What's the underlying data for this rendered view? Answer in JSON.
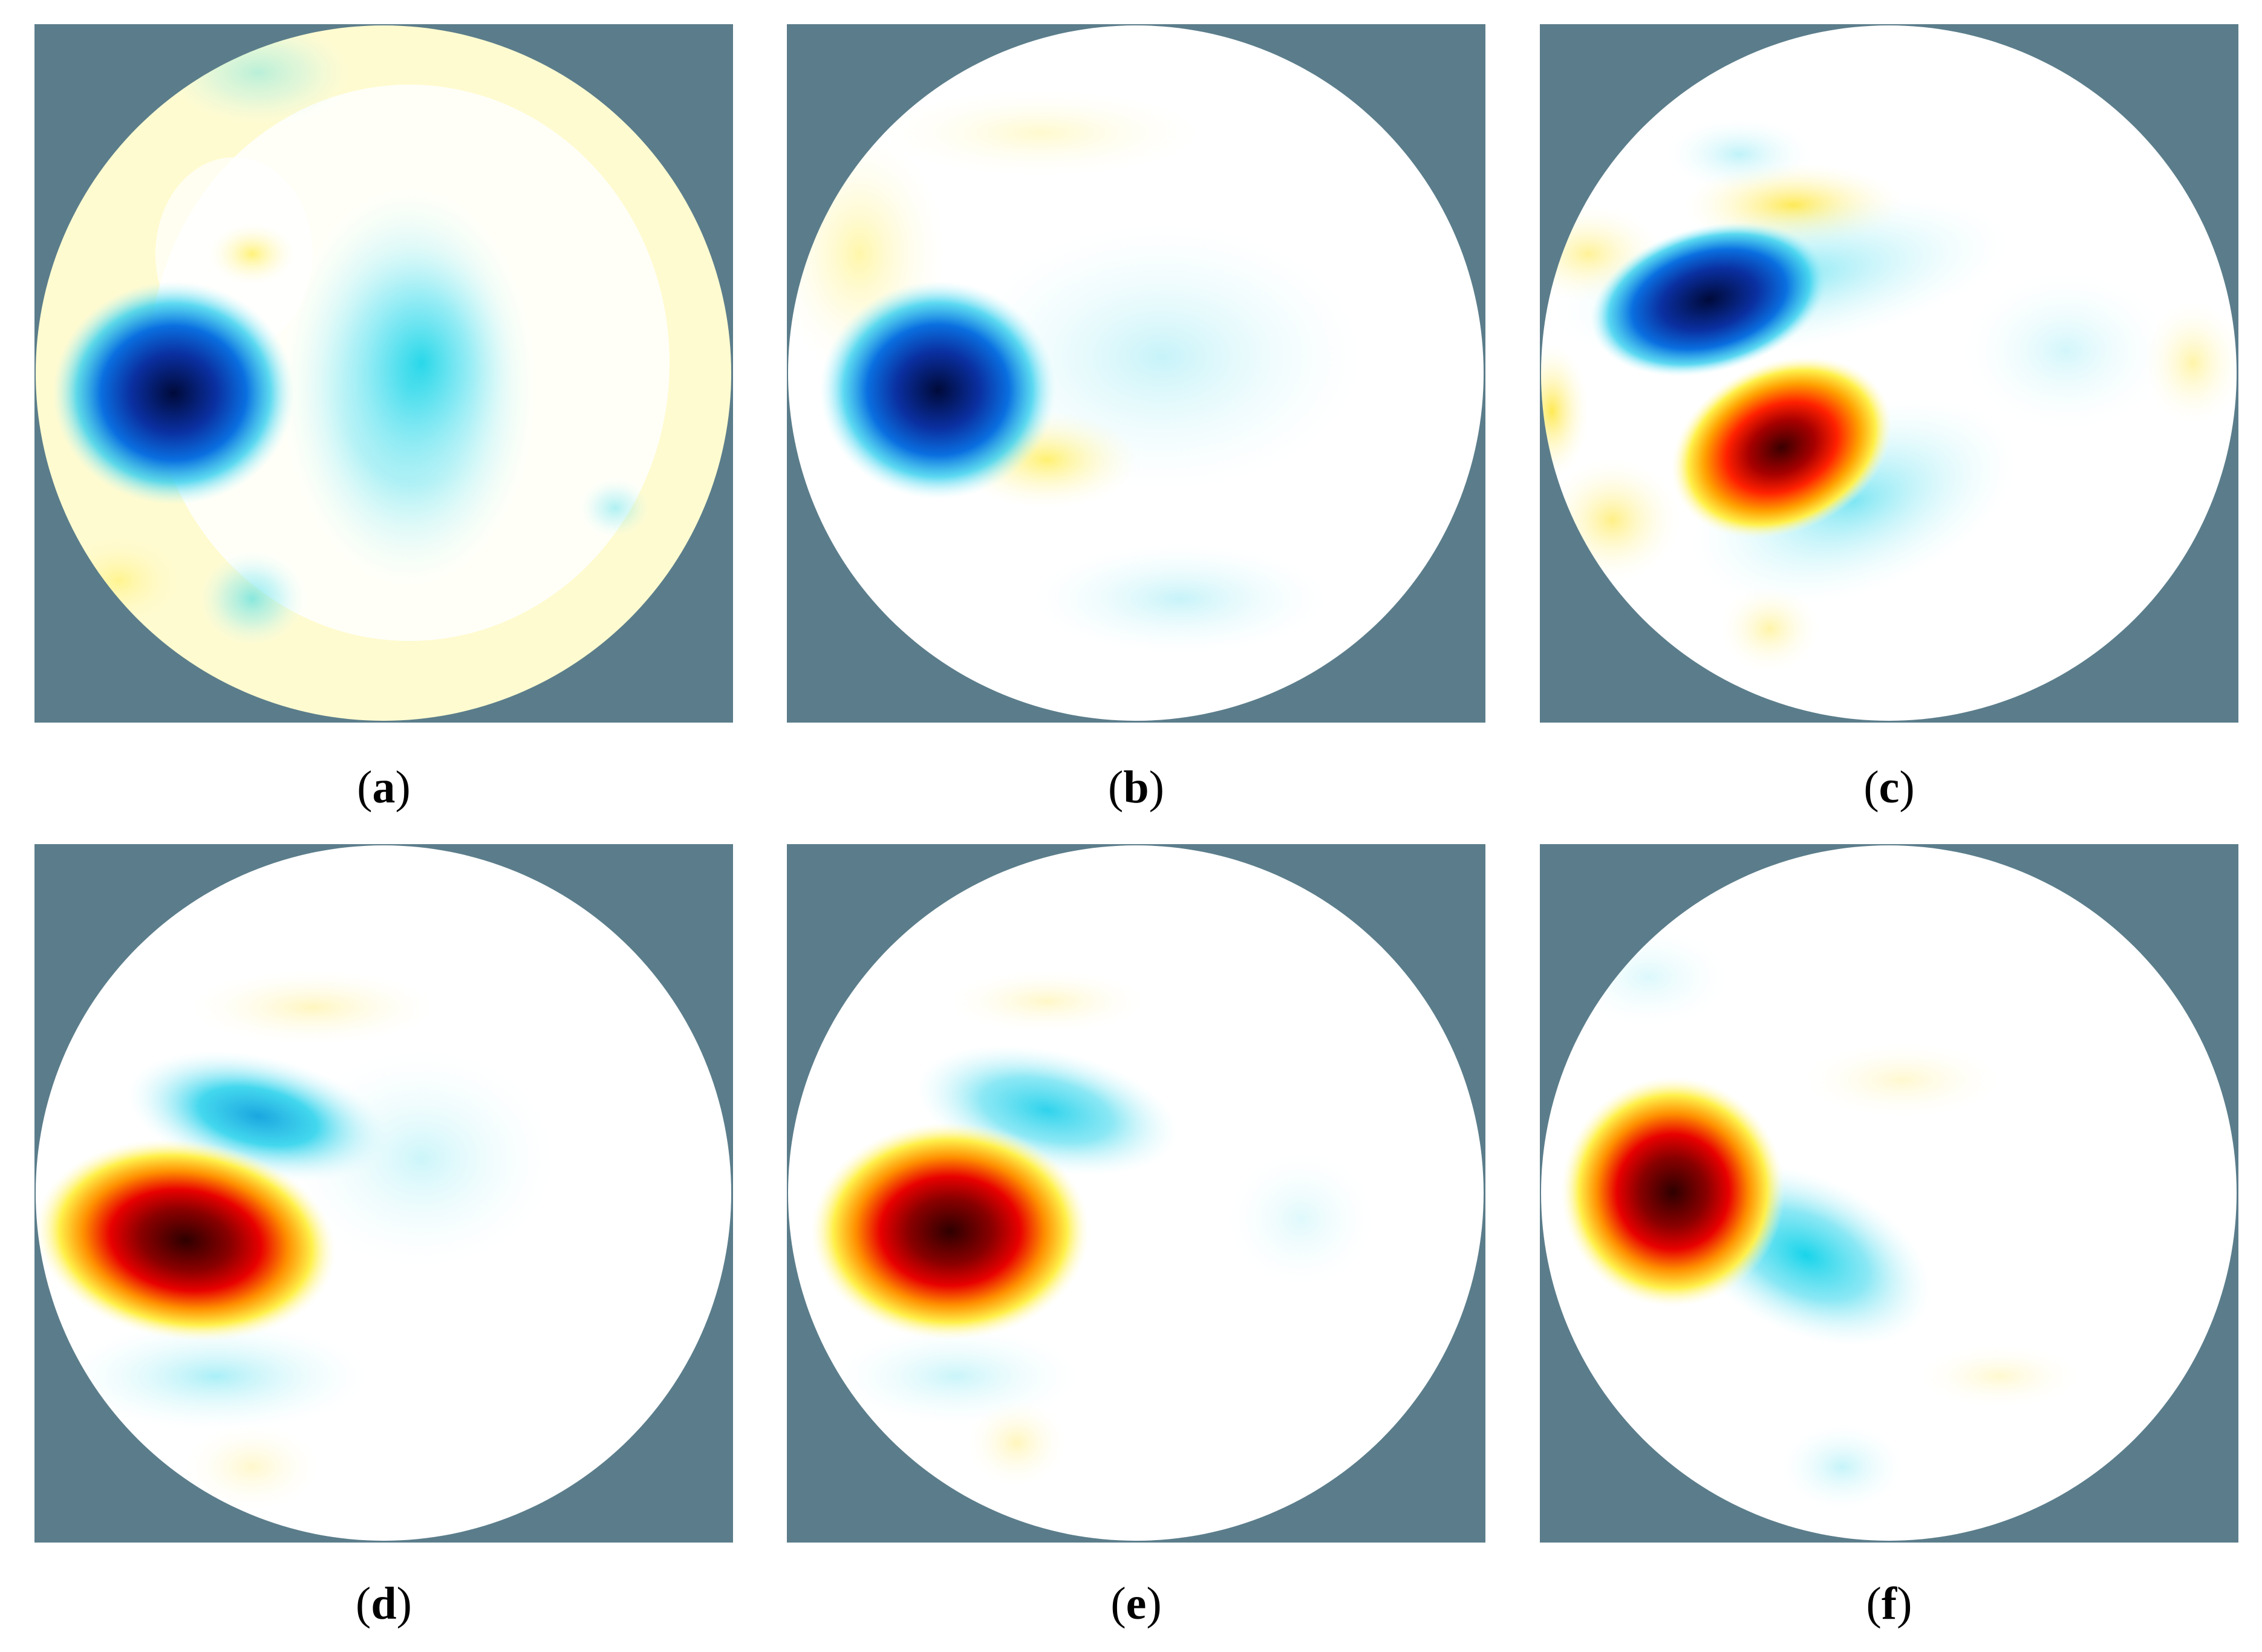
{
  "colors": {
    "frame_background": "#5b7d8b",
    "disk_base": "#fffff4",
    "negative_strong": "#000a3a",
    "negative_mid": "#0a3fd6",
    "negative_light": "#14d8ec",
    "neutral": "#ffffff",
    "positive_light": "#fff56a",
    "positive_mid": "#ff8c00",
    "positive_strong": "#2e0000"
  },
  "panels": [
    {
      "id": "a",
      "label": "a"
    },
    {
      "id": "b",
      "label": "b"
    },
    {
      "id": "c",
      "label": "c"
    },
    {
      "id": "d",
      "label": "d"
    },
    {
      "id": "e",
      "label": "e"
    },
    {
      "id": "f",
      "label": "f"
    }
  ]
}
